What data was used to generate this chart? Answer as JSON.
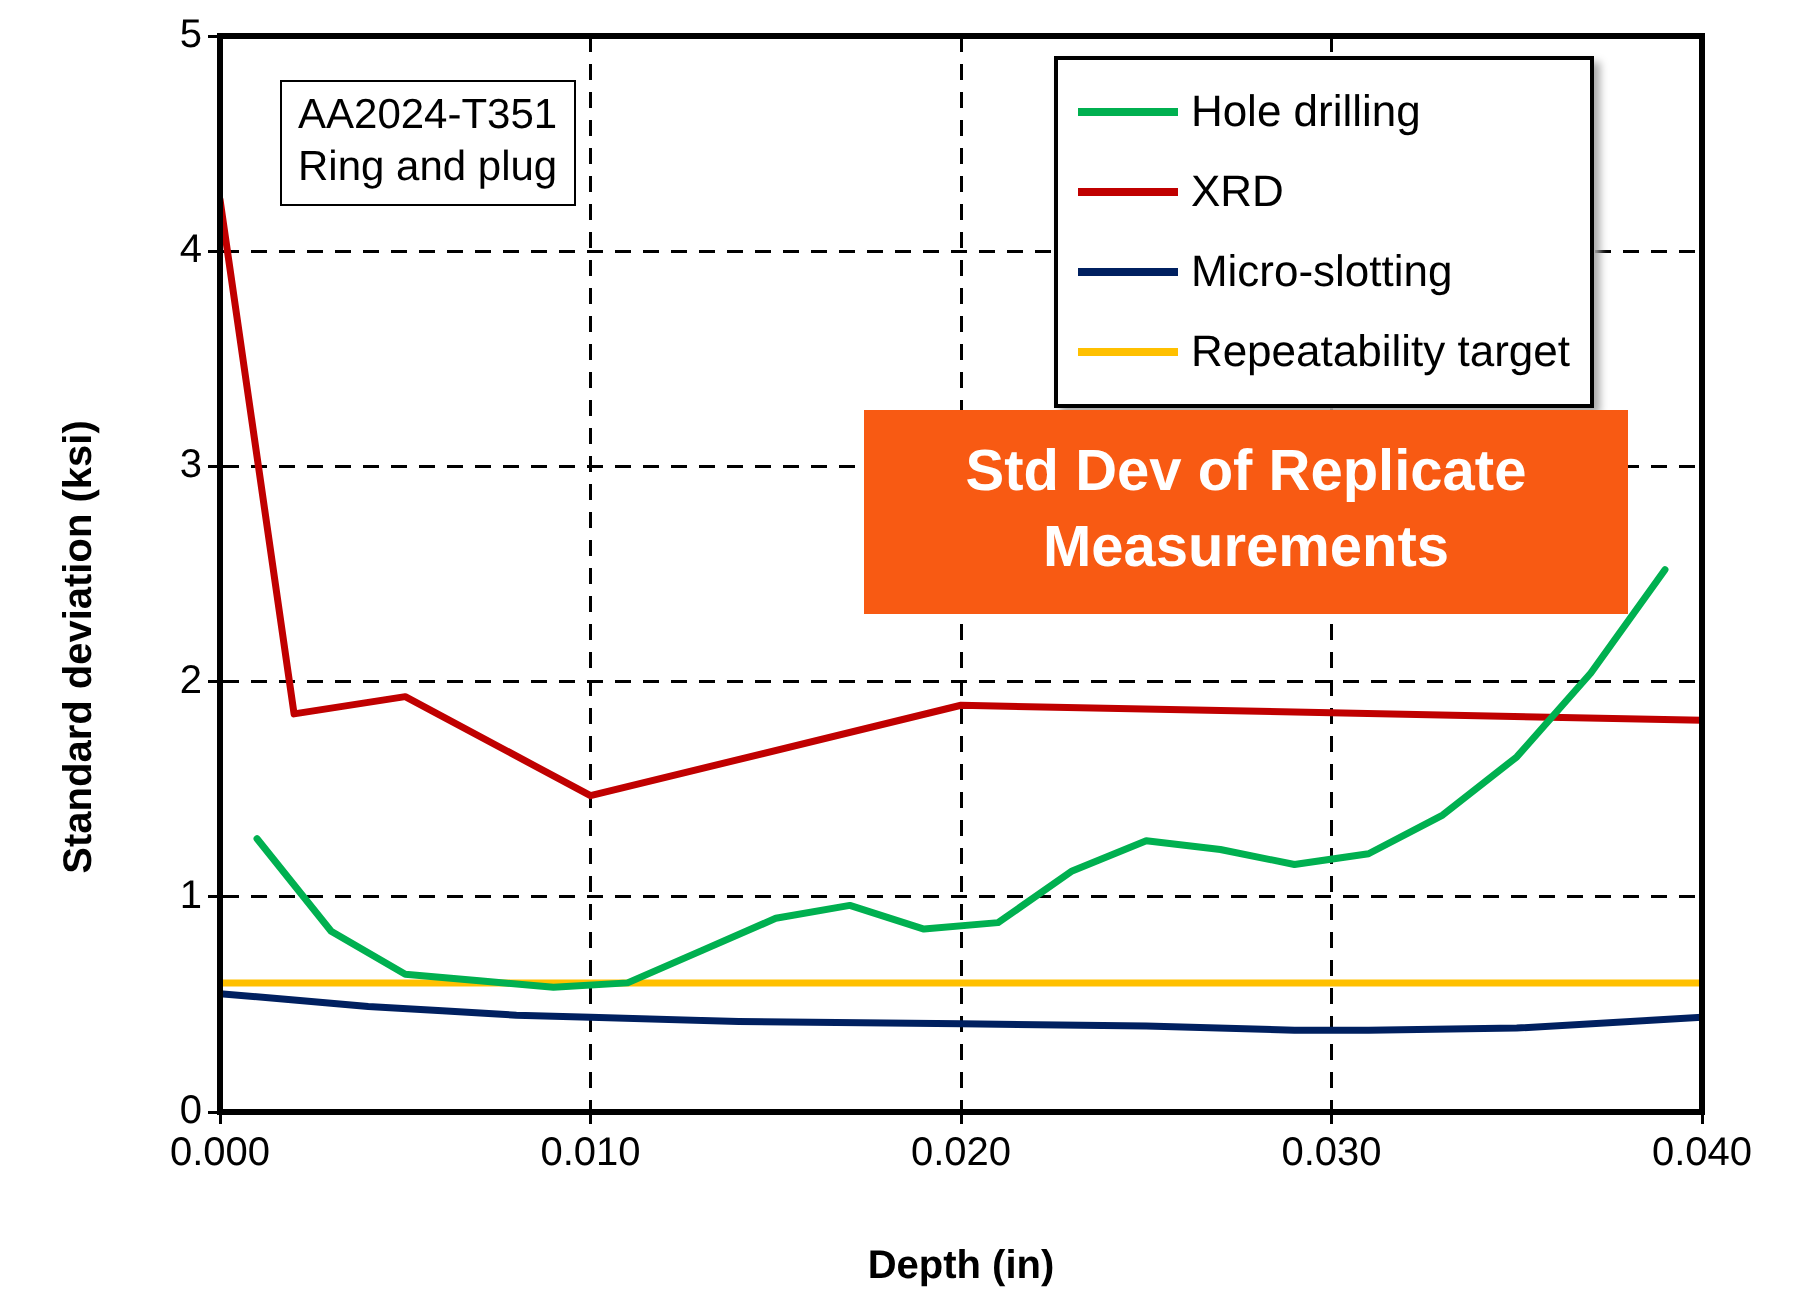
{
  "chart_data": {
    "type": "line",
    "xlabel": "Depth (in)",
    "ylabel": "Standard deviation (ksi)",
    "xlim": [
      0,
      0.04
    ],
    "xticks": [
      {
        "value": 0,
        "label": "0.000"
      },
      {
        "value": 0.01,
        "label": "0.010"
      },
      {
        "value": 0.02,
        "label": "0.020"
      },
      {
        "value": 0.03,
        "label": "0.030"
      },
      {
        "value": 0.04,
        "label": "0.040"
      }
    ],
    "ylim": [
      0,
      5
    ],
    "yticks": [
      0,
      1,
      2,
      3,
      4,
      5
    ],
    "grid": true,
    "legend": "top right",
    "marker": "none",
    "line_style": "solid",
    "series": [
      {
        "name": "Hole drilling",
        "color": "#00b050",
        "x": [
          0.001,
          0.003,
          0.005,
          0.007,
          0.009,
          0.011,
          0.013,
          0.015,
          0.017,
          0.019,
          0.021,
          0.023,
          0.025,
          0.027,
          0.029,
          0.031,
          0.033,
          0.035,
          0.037,
          0.039
        ],
        "values": [
          1.27,
          0.84,
          0.64,
          0.61,
          0.58,
          0.6,
          0.75,
          0.9,
          0.96,
          0.85,
          0.88,
          1.12,
          1.26,
          1.22,
          1.15,
          1.2,
          1.38,
          1.65,
          2.04,
          2.52
        ]
      },
      {
        "name": "XRD",
        "color": "#c00000",
        "x": [
          0,
          0.002,
          0.005,
          0.01,
          0.02,
          0.04
        ],
        "values": [
          4.24,
          1.85,
          1.93,
          1.47,
          1.89,
          1.82
        ]
      },
      {
        "name": "Micro-slotting",
        "color": "#002060",
        "x": [
          0,
          0.002,
          0.004,
          0.006,
          0.008,
          0.01,
          0.014,
          0.02,
          0.025,
          0.029,
          0.031,
          0.035,
          0.04
        ],
        "values": [
          0.55,
          0.52,
          0.49,
          0.47,
          0.45,
          0.44,
          0.42,
          0.41,
          0.4,
          0.38,
          0.38,
          0.39,
          0.44
        ]
      },
      {
        "name": "Repeatability target",
        "color": "#ffc000",
        "x": [
          0,
          0.04
        ],
        "values": [
          0.6,
          0.6
        ]
      }
    ],
    "annotations": [
      "AA2024-T351\nRing and plug",
      "Std Dev of Replicate\nMeasurements"
    ]
  }
}
